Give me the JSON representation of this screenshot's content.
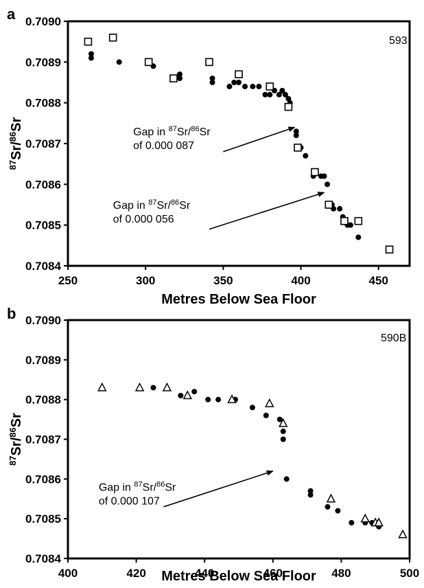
{
  "chart_data": [
    {
      "panel": "a",
      "type": "scatter",
      "site": "593",
      "xlabel": "Metres Below Sea Floor",
      "ylabel_iso1": "87",
      "ylabel_el1": "Sr/",
      "ylabel_iso2": "86",
      "ylabel_el2": "Sr",
      "xlim": [
        250,
        470
      ],
      "ylim": [
        0.7084,
        0.709
      ],
      "xticks": [
        "250",
        "300",
        "350",
        "400",
        "450"
      ],
      "yticks": [
        "0.7084",
        "0.7085",
        "0.7086",
        "0.7087",
        "0.7088",
        "0.7089",
        "0.7090"
      ],
      "series": [
        {
          "marker": "filled-circle",
          "x": [
            265,
            265,
            283,
            305,
            322,
            322,
            343,
            343,
            354,
            357,
            360,
            364,
            369,
            373,
            377,
            380,
            383,
            386,
            388,
            390,
            392,
            393,
            397,
            397,
            400,
            403,
            408,
            413,
            415,
            417,
            420,
            421,
            425,
            427,
            430,
            432,
            437
          ],
          "y": [
            0.70892,
            0.70891,
            0.7089,
            0.70889,
            0.70887,
            0.70886,
            0.70886,
            0.70885,
            0.70884,
            0.70885,
            0.70885,
            0.70884,
            0.70884,
            0.70884,
            0.70882,
            0.70882,
            0.70883,
            0.70882,
            0.70883,
            0.70882,
            0.70881,
            0.7088,
            0.70873,
            0.70872,
            0.70869,
            0.70867,
            0.70862,
            0.70862,
            0.70862,
            0.7086,
            0.70855,
            0.70854,
            0.70854,
            0.70852,
            0.7085,
            0.7085,
            0.70847
          ]
        },
        {
          "marker": "open-square",
          "x": [
            263,
            279,
            302,
            318,
            341,
            360,
            380,
            392,
            398,
            409,
            418,
            428,
            437,
            457
          ],
          "y": [
            0.70895,
            0.70896,
            0.7089,
            0.70886,
            0.7089,
            0.70887,
            0.70884,
            0.70879,
            0.70869,
            0.70863,
            0.70855,
            0.70851,
            0.70851,
            0.70844
          ]
        }
      ],
      "annotations": [
        {
          "line1_prefix": "Gap in ",
          "iso1": "87",
          "el1": "Sr/",
          "iso2": "86",
          "el2": "Sr",
          "line2": "of  0.000 087",
          "text_x": 292,
          "text_y": 0.70872,
          "arrow_from": [
            350,
            0.70868
          ],
          "arrow_to": [
            396,
            0.70874
          ]
        },
        {
          "line1_prefix": "Gap in ",
          "iso1": "87",
          "el1": "Sr/",
          "iso2": "86",
          "el2": "Sr",
          "line2": "of  0.000 056",
          "text_x": 279,
          "text_y": 0.70854,
          "arrow_from": [
            341,
            0.70849
          ],
          "arrow_to": [
            415,
            0.70858
          ]
        }
      ]
    },
    {
      "panel": "b",
      "type": "scatter",
      "site": "590B",
      "xlabel": "Metres Below Sea Floor",
      "ylabel_iso1": "87",
      "ylabel_el1": "Sr/",
      "ylabel_iso2": "86",
      "ylabel_el2": "Sr",
      "xlim": [
        400,
        500
      ],
      "ylim": [
        0.7084,
        0.709
      ],
      "xticks": [
        "400",
        "420",
        "440",
        "460",
        "480",
        "500"
      ],
      "yticks": [
        "0.7084",
        "0.7085",
        "0.7086",
        "0.7087",
        "0.7088",
        "0.7089",
        "0.7090"
      ],
      "series": [
        {
          "marker": "filled-circle",
          "x": [
            425,
            433,
            437,
            441,
            444,
            449,
            454,
            458,
            462,
            463,
            463,
            464,
            471,
            471,
            476,
            479,
            483,
            487,
            489,
            491
          ],
          "y": [
            0.70883,
            0.70881,
            0.70882,
            0.7088,
            0.7088,
            0.7088,
            0.70878,
            0.70876,
            0.70875,
            0.70872,
            0.7087,
            0.7086,
            0.70857,
            0.70856,
            0.70853,
            0.70852,
            0.70849,
            0.70849,
            0.70849,
            0.70848
          ]
        },
        {
          "marker": "open-triangle",
          "x": [
            410,
            421,
            429,
            435,
            448,
            459,
            463,
            477,
            487,
            490,
            491,
            498
          ],
          "y": [
            0.70883,
            0.70883,
            0.70883,
            0.70881,
            0.7088,
            0.70879,
            0.70874,
            0.70855,
            0.7085,
            0.70849,
            0.70849,
            0.70846
          ]
        }
      ],
      "annotations": [
        {
          "line1_prefix": "Gap in ",
          "iso1": "87",
          "el1": "Sr/",
          "iso2": "86",
          "el2": "Sr",
          "line2": "of  0.000 107",
          "text_x": 409,
          "text_y": 0.70857,
          "arrow_from": [
            428,
            0.70853
          ],
          "arrow_to": [
            460,
            0.70862
          ]
        }
      ]
    }
  ]
}
